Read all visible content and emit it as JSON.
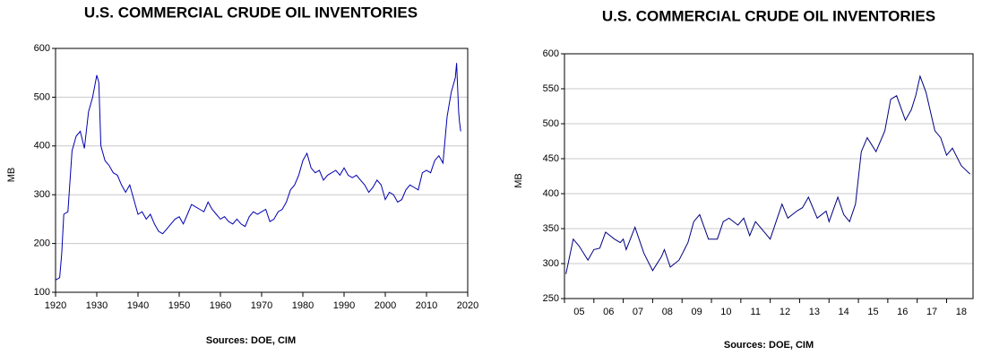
{
  "chart_data": [
    {
      "type": "line",
      "title": "U.S. COMMERCIAL CRUDE OIL INVENTORIES",
      "y_label": "MB",
      "note": "Sources:  DOE, CIM",
      "xlim": [
        1920,
        2020
      ],
      "xticks": [
        1920,
        1930,
        1940,
        1950,
        1960,
        1970,
        1980,
        1990,
        2000,
        2010,
        2020
      ],
      "ylim": [
        100,
        600
      ],
      "yticks": [
        100,
        200,
        300,
        400,
        500,
        600
      ],
      "grid": true,
      "series": [
        {
          "name": "Inventories",
          "color": "#0000b0",
          "x": [
            1920,
            1921,
            1921.5,
            1922,
            1923,
            1924,
            1925,
            1926,
            1927,
            1928,
            1929,
            1930,
            1930.5,
            1931,
            1932,
            1933,
            1934,
            1935,
            1936,
            1937,
            1938,
            1939,
            1940,
            1941,
            1942,
            1943,
            1944,
            1945,
            1946,
            1947,
            1948,
            1949,
            1950,
            1951,
            1952,
            1953,
            1954,
            1955,
            1956,
            1957,
            1958,
            1959,
            1960,
            1961,
            1962,
            1963,
            1964,
            1965,
            1966,
            1967,
            1968,
            1969,
            1970,
            1971,
            1972,
            1973,
            1974,
            1975,
            1976,
            1977,
            1978,
            1979,
            1980,
            1981,
            1982,
            1983,
            1984,
            1985,
            1986,
            1987,
            1988,
            1989,
            1990,
            1991,
            1992,
            1993,
            1994,
            1995,
            1996,
            1997,
            1998,
            1999,
            2000,
            2001,
            2002,
            2003,
            2004,
            2005,
            2006,
            2007,
            2008,
            2009,
            2010,
            2011,
            2012,
            2013,
            2014,
            2015,
            2016,
            2017,
            2017.3,
            2017.8,
            2018,
            2018.3
          ],
          "values": [
            125,
            130,
            180,
            260,
            265,
            390,
            420,
            430,
            395,
            470,
            500,
            545,
            530,
            400,
            370,
            360,
            345,
            340,
            320,
            305,
            320,
            290,
            260,
            265,
            250,
            260,
            240,
            225,
            220,
            230,
            240,
            250,
            255,
            240,
            260,
            280,
            275,
            270,
            265,
            285,
            270,
            260,
            250,
            255,
            245,
            240,
            250,
            240,
            235,
            255,
            265,
            260,
            265,
            270,
            245,
            250,
            265,
            270,
            285,
            310,
            320,
            340,
            370,
            385,
            355,
            345,
            350,
            330,
            340,
            345,
            350,
            340,
            355,
            340,
            335,
            340,
            330,
            320,
            305,
            315,
            330,
            320,
            290,
            305,
            300,
            285,
            290,
            310,
            320,
            315,
            310,
            345,
            350,
            345,
            370,
            380,
            365,
            460,
            510,
            540,
            570,
            470,
            450,
            430
          ]
        }
      ]
    },
    {
      "type": "line",
      "title": "U.S. COMMERCIAL CRUDE OIL INVENTORIES",
      "y_label": "MB",
      "note": "Sources:  DOE, CIM",
      "xlim": [
        2005,
        2018.9
      ],
      "xticks": [
        {
          "value": 2005,
          "label": "05"
        },
        {
          "value": 2006,
          "label": "06"
        },
        {
          "value": 2007,
          "label": "07"
        },
        {
          "value": 2008,
          "label": "08"
        },
        {
          "value": 2009,
          "label": "09"
        },
        {
          "value": 2010,
          "label": "10"
        },
        {
          "value": 2011,
          "label": "11"
        },
        {
          "value": 2012,
          "label": "12"
        },
        {
          "value": 2013,
          "label": "13"
        },
        {
          "value": 2014,
          "label": "14"
        },
        {
          "value": 2015,
          "label": "15"
        },
        {
          "value": 2016,
          "label": "16"
        },
        {
          "value": 2017,
          "label": "17"
        },
        {
          "value": 2018,
          "label": "18"
        }
      ],
      "ylim": [
        250,
        600
      ],
      "yticks": [
        250,
        300,
        350,
        400,
        450,
        500,
        550,
        600
      ],
      "grid": true,
      "series": [
        {
          "name": "Inventories",
          "color": "#000080",
          "x": [
            2005.05,
            2005.3,
            2005.5,
            2005.8,
            2006.0,
            2006.2,
            2006.4,
            2006.7,
            2006.9,
            2007.0,
            2007.1,
            2007.4,
            2007.7,
            2008.0,
            2008.3,
            2008.4,
            2008.6,
            2008.9,
            2009.2,
            2009.4,
            2009.6,
            2009.9,
            2010.2,
            2010.4,
            2010.6,
            2010.9,
            2011.1,
            2011.3,
            2011.5,
            2011.8,
            2012.0,
            2012.2,
            2012.4,
            2012.6,
            2012.9,
            2013.1,
            2013.3,
            2013.6,
            2013.9,
            2014.0,
            2014.3,
            2014.5,
            2014.7,
            2014.9,
            2015.1,
            2015.3,
            2015.6,
            2015.9,
            2016.1,
            2016.3,
            2016.6,
            2016.8,
            2016.95,
            2017.1,
            2017.3,
            2017.6,
            2017.8,
            2018.0,
            2018.2,
            2018.5,
            2018.8
          ],
          "values": [
            285,
            335,
            325,
            305,
            320,
            322,
            345,
            335,
            330,
            335,
            320,
            352,
            315,
            290,
            310,
            320,
            295,
            305,
            330,
            360,
            370,
            335,
            335,
            360,
            365,
            355,
            365,
            340,
            360,
            345,
            335,
            360,
            385,
            365,
            375,
            380,
            395,
            365,
            375,
            360,
            395,
            370,
            360,
            385,
            460,
            480,
            460,
            490,
            535,
            540,
            505,
            520,
            540,
            568,
            545,
            490,
            480,
            455,
            465,
            440,
            428
          ]
        }
      ]
    }
  ]
}
